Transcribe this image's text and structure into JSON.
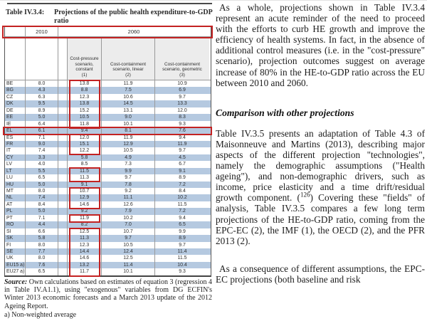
{
  "table": {
    "label": "Table IV.3.4:",
    "title": "Projections of the public health expenditure-to-GDP ratio",
    "year_headers": [
      "2010",
      "2060"
    ],
    "scenario_headers": [
      {
        "name": "Cost-pressure scenario, constant",
        "num": "(1)"
      },
      {
        "name": "Cost-containment scenario, linear",
        "num": "(2)"
      },
      {
        "name": "Cost-containment scenario, geometric",
        "num": "(3)"
      }
    ],
    "rows": [
      {
        "country": "BE",
        "y2010": "8.0",
        "cp": "13.8",
        "ccl": "11.9",
        "ccg": "10.9"
      },
      {
        "country": "BG",
        "y2010": "4.3",
        "cp": "8.8",
        "ccl": "7.5",
        "ccg": "6.9"
      },
      {
        "country": "CZ",
        "y2010": "6.3",
        "cp": "12.3",
        "ccl": "10.6",
        "ccg": "9.7"
      },
      {
        "country": "DK",
        "y2010": "9.5",
        "cp": "13.8",
        "ccl": "14.5",
        "ccg": "13.3"
      },
      {
        "country": "DE",
        "y2010": "8.9",
        "cp": "15.2",
        "ccl": "13.1",
        "ccg": "12.0"
      },
      {
        "country": "EE",
        "y2010": "5.0",
        "cp": "10.5",
        "ccl": "9.0",
        "ccg": "8.3"
      },
      {
        "country": "IE",
        "y2010": "6.4",
        "cp": "11.8",
        "ccl": "10.1",
        "ccg": "9.3"
      },
      {
        "country": "EL",
        "y2010": "6.1",
        "cp": "9.4",
        "ccl": "8.1",
        "ccg": "7.6"
      },
      {
        "country": "ES",
        "y2010": "7.1",
        "cp": "12.0",
        "ccl": "11.9",
        "ccg": "9.4"
      },
      {
        "country": "FR",
        "y2010": "9.0",
        "cp": "15.1",
        "ccl": "12.9",
        "ccg": "11.9"
      },
      {
        "country": "IT",
        "y2010": "7.4",
        "cp": "12.2",
        "ccl": "10.5",
        "ccg": "9.7"
      },
      {
        "country": "CY",
        "y2010": "3.3",
        "cp": "5.8",
        "ccl": "4.9",
        "ccg": "4.5"
      },
      {
        "country": "LV",
        "y2010": "4.0",
        "cp": "8.5",
        "ccl": "7.3",
        "ccg": "6.7"
      },
      {
        "country": "LT",
        "y2010": "5.5",
        "cp": "11.5",
        "ccl": "9.9",
        "ccg": "9.1"
      },
      {
        "country": "LU",
        "y2010": "6.5",
        "cp": "11.3",
        "ccl": "9.7",
        "ccg": "8.9"
      },
      {
        "country": "HU",
        "y2010": "5.0",
        "cp": "9.1",
        "ccl": "7.8",
        "ccg": "7.2"
      },
      {
        "country": "MT",
        "y2010": "8.0",
        "cp": "10.7",
        "ccl": "9.2",
        "ccg": "8.4"
      },
      {
        "country": "NL",
        "y2010": "7.4",
        "cp": "12.9",
        "ccl": "11.1",
        "ccg": "10.2"
      },
      {
        "country": "AT",
        "y2010": "8.4",
        "cp": "14.6",
        "ccl": "12.6",
        "ccg": "11.5"
      },
      {
        "country": "PL",
        "y2010": "5.0",
        "cp": "9.2",
        "ccl": "7.9",
        "ccg": "7.2"
      },
      {
        "country": "PT",
        "y2010": "7.1",
        "cp": "11.9",
        "ccl": "10.2",
        "ccg": "9.4"
      },
      {
        "country": "RO",
        "y2010": "4.4",
        "cp": "8.2",
        "ccl": "7.0",
        "ccg": "6.5"
      },
      {
        "country": "SI",
        "y2010": "6.6",
        "cp": "12.5",
        "ccl": "10.7",
        "ccg": "9.9"
      },
      {
        "country": "SK",
        "y2010": "5.8",
        "cp": "11.3",
        "ccl": "9.7",
        "ccg": "8.9"
      },
      {
        "country": "FI",
        "y2010": "8.0",
        "cp": "12.3",
        "ccl": "10.5",
        "ccg": "9.7"
      },
      {
        "country": "SE",
        "y2010": "7.7",
        "cp": "14.4",
        "ccl": "12.4",
        "ccg": "11.4"
      },
      {
        "country": "UK",
        "y2010": "8.0",
        "cp": "14.6",
        "ccl": "12.5",
        "ccg": "11.5"
      },
      {
        "country": "EU15 a)",
        "y2010": "7.6",
        "cp": "13.2",
        "ccl": "11.4",
        "ccg": "10.4"
      },
      {
        "country": "EU27 a)",
        "y2010": "6.5",
        "cp": "11.7",
        "ccl": "10.1",
        "ccg": "9.3"
      }
    ],
    "highlights": [
      {
        "type": "header"
      },
      {
        "type": "col",
        "from": "BE",
        "to": "IE"
      },
      {
        "type": "row",
        "from": "EL",
        "to": "EL"
      },
      {
        "type": "col",
        "from": "ES",
        "to": "IT"
      },
      {
        "type": "col",
        "from": "LT",
        "to": "LU"
      },
      {
        "type": "col",
        "from": "MT",
        "to": "AT"
      },
      {
        "type": "col",
        "from": "PT",
        "to": "PT"
      },
      {
        "type": "col",
        "from": "SI",
        "to": "EU27 a)"
      }
    ],
    "source_label": "Source:",
    "source_text": "Own calculations based on estimates of equation 3 (regression 4 in Table IV.A1.1), using \"exogenous\" variables from DG ECFIN's Winter 2013 economic forecasts and a March 2013 update of the 2012 Ageing Report.",
    "footnote": "a) Non-weighted average"
  },
  "article": {
    "para1": "As a whole, projections shown in Table IV.3.4 represent an acute reminder of the need to proceed with the efforts to curb HE growth and improve the efficiency of health systems. In fact, in the absence of additional control measures (i.e. in the \"cost-pressure\" scenario), projection outcomes suggest on average increase of 80% in the HE-to-GDP ratio across the EU between 2010 and 2060.",
    "heading": "Comparison with other projections",
    "para2_pre": "Table IV.3.5 presents an adaptation of Table 4.3 of Maisonneuve and Martins (2013), describing major aspects of the different projection \"technologies\", namely the demographic assumptions (\"Health ageing\"), and non-demographic drivers, such as income, price elasticity and a time drift/residual growth component. (",
    "para2_sup": "126",
    "para2_post": ") Covering these \"fields\" of analysis, Table IV.3.5 compares a few long term projections of the HE-to-GDP ratio, coming from the EPC-EC (2), the IMF (1), the OECD (2), and the PFR 2013 (2).",
    "para3": "As a consequence of different assumptions, the EPC-EC projections (both baseline and risk"
  },
  "colors": {
    "alt_row": "#b5c9e0",
    "highlight_red": "#c32222",
    "header_gray": "#ececec",
    "rule_dark": "#4a4a4a"
  }
}
